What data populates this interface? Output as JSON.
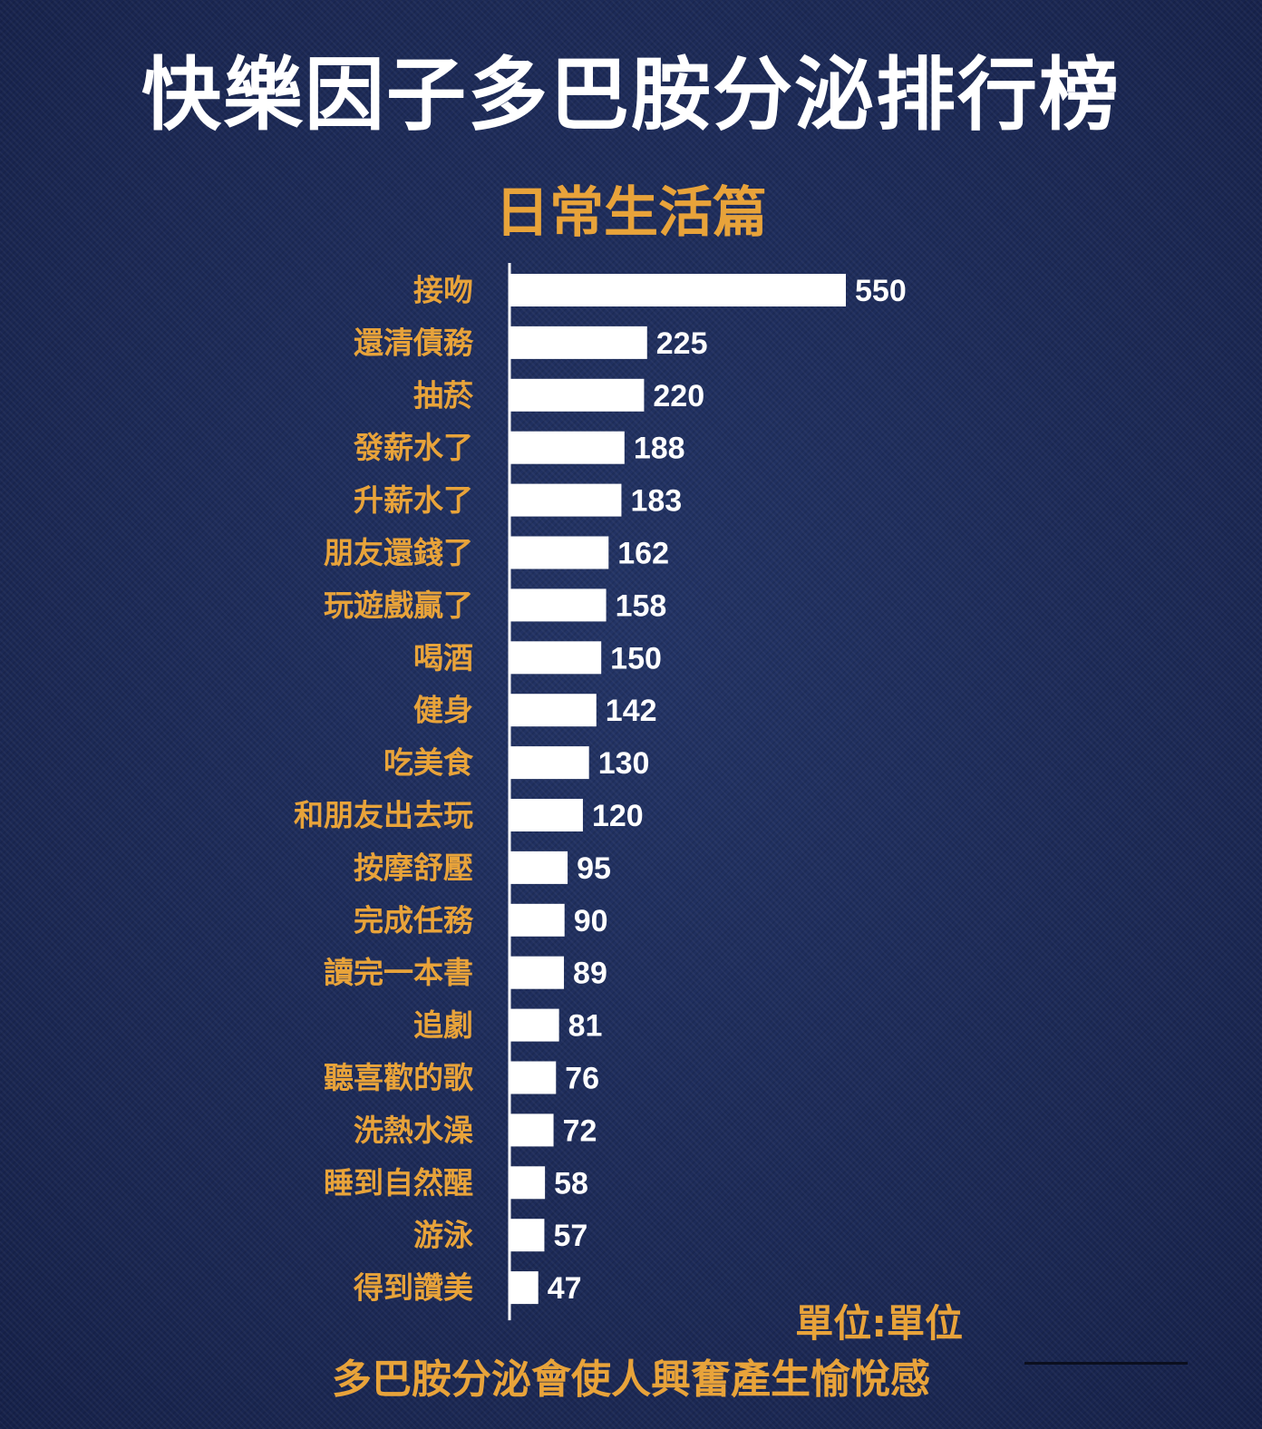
{
  "title": "快樂因子多巴胺分泌排行榜",
  "subtitle": "日常生活篇",
  "chart_data": {
    "type": "bar",
    "orientation": "horizontal",
    "categories": [
      "接吻",
      "還清債務",
      "抽菸",
      "發薪水了",
      "升薪水了",
      "朋友還錢了",
      "玩遊戲贏了",
      "喝酒",
      "健身",
      "吃美食",
      "和朋友出去玩",
      "按摩舒壓",
      "完成任務",
      "讀完一本書",
      "追劇",
      "聽喜歡的歌",
      "洗熱水澡",
      "睡到自然醒",
      "游泳",
      "得到讚美"
    ],
    "values": [
      550,
      225,
      220,
      188,
      183,
      162,
      158,
      150,
      142,
      130,
      120,
      95,
      90,
      89,
      81,
      76,
      72,
      58,
      57,
      47
    ],
    "xlim": [
      0,
      550
    ],
    "data_labels": true,
    "grid": false,
    "legend": "none",
    "colors": {
      "bar": "#ffffff",
      "category_label": "#e8a33a",
      "value_label": "#ffffff",
      "axis": "#ffffff"
    }
  },
  "unit_note": "單位:單位",
  "footer": "多巴胺分泌會使人興奮產生愉悅感"
}
